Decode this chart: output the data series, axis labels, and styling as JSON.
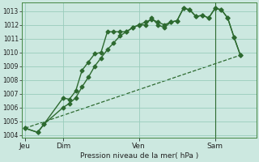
{
  "background_color": "#cce8e0",
  "grid_color": "#99ccbb",
  "line_color": "#2d6a30",
  "ylabel": "Pression niveau de la mer( hPa )",
  "ylim": [
    1003.8,
    1013.6
  ],
  "yticks": [
    1004,
    1005,
    1006,
    1007,
    1008,
    1009,
    1010,
    1011,
    1012,
    1013
  ],
  "xtick_labels": [
    "Jeu",
    "Dim",
    "Ven",
    "Sam"
  ],
  "xtick_positions": [
    2,
    26,
    74,
    122
  ],
  "xlim": [
    0,
    148
  ],
  "vline_x": 122,
  "s1x": [
    2,
    10,
    14,
    26,
    30,
    34,
    38,
    42,
    46,
    50,
    54,
    58,
    62,
    66,
    70,
    74,
    78,
    82,
    86,
    90,
    94,
    98,
    102,
    106,
    110,
    114,
    118,
    122,
    126,
    130,
    134,
    138
  ],
  "s1y": [
    1004.5,
    1004.2,
    1004.8,
    1006.7,
    1006.6,
    1007.2,
    1008.7,
    1009.3,
    1009.9,
    1010.0,
    1011.5,
    1011.5,
    1011.5,
    1011.5,
    1011.8,
    1012.0,
    1012.0,
    1012.5,
    1012.0,
    1011.8,
    1012.2,
    1012.3,
    1013.2,
    1013.1,
    1012.6,
    1012.7,
    1012.5,
    1013.2,
    1013.1,
    1012.5,
    1011.1,
    1009.8
  ],
  "s2x": [
    2,
    10,
    14,
    26,
    30,
    34,
    38,
    42,
    46,
    50,
    54,
    58,
    62,
    66,
    70,
    74,
    78,
    82,
    86,
    90,
    94,
    98,
    102,
    106,
    110,
    114,
    118,
    122,
    126,
    130,
    134,
    138
  ],
  "s2y": [
    1004.5,
    1004.2,
    1004.8,
    1006.0,
    1006.3,
    1006.7,
    1007.5,
    1008.2,
    1009.0,
    1009.6,
    1010.2,
    1010.7,
    1011.2,
    1011.5,
    1011.8,
    1012.0,
    1012.2,
    1012.4,
    1012.2,
    1012.0,
    1012.2,
    1012.3,
    1013.2,
    1013.1,
    1012.6,
    1012.7,
    1012.5,
    1013.2,
    1013.1,
    1012.5,
    1011.1,
    1009.8
  ],
  "s3x": [
    2,
    138
  ],
  "s3y": [
    1004.5,
    1009.8
  ],
  "marker_size": 2.5,
  "linewidth": 1.0
}
